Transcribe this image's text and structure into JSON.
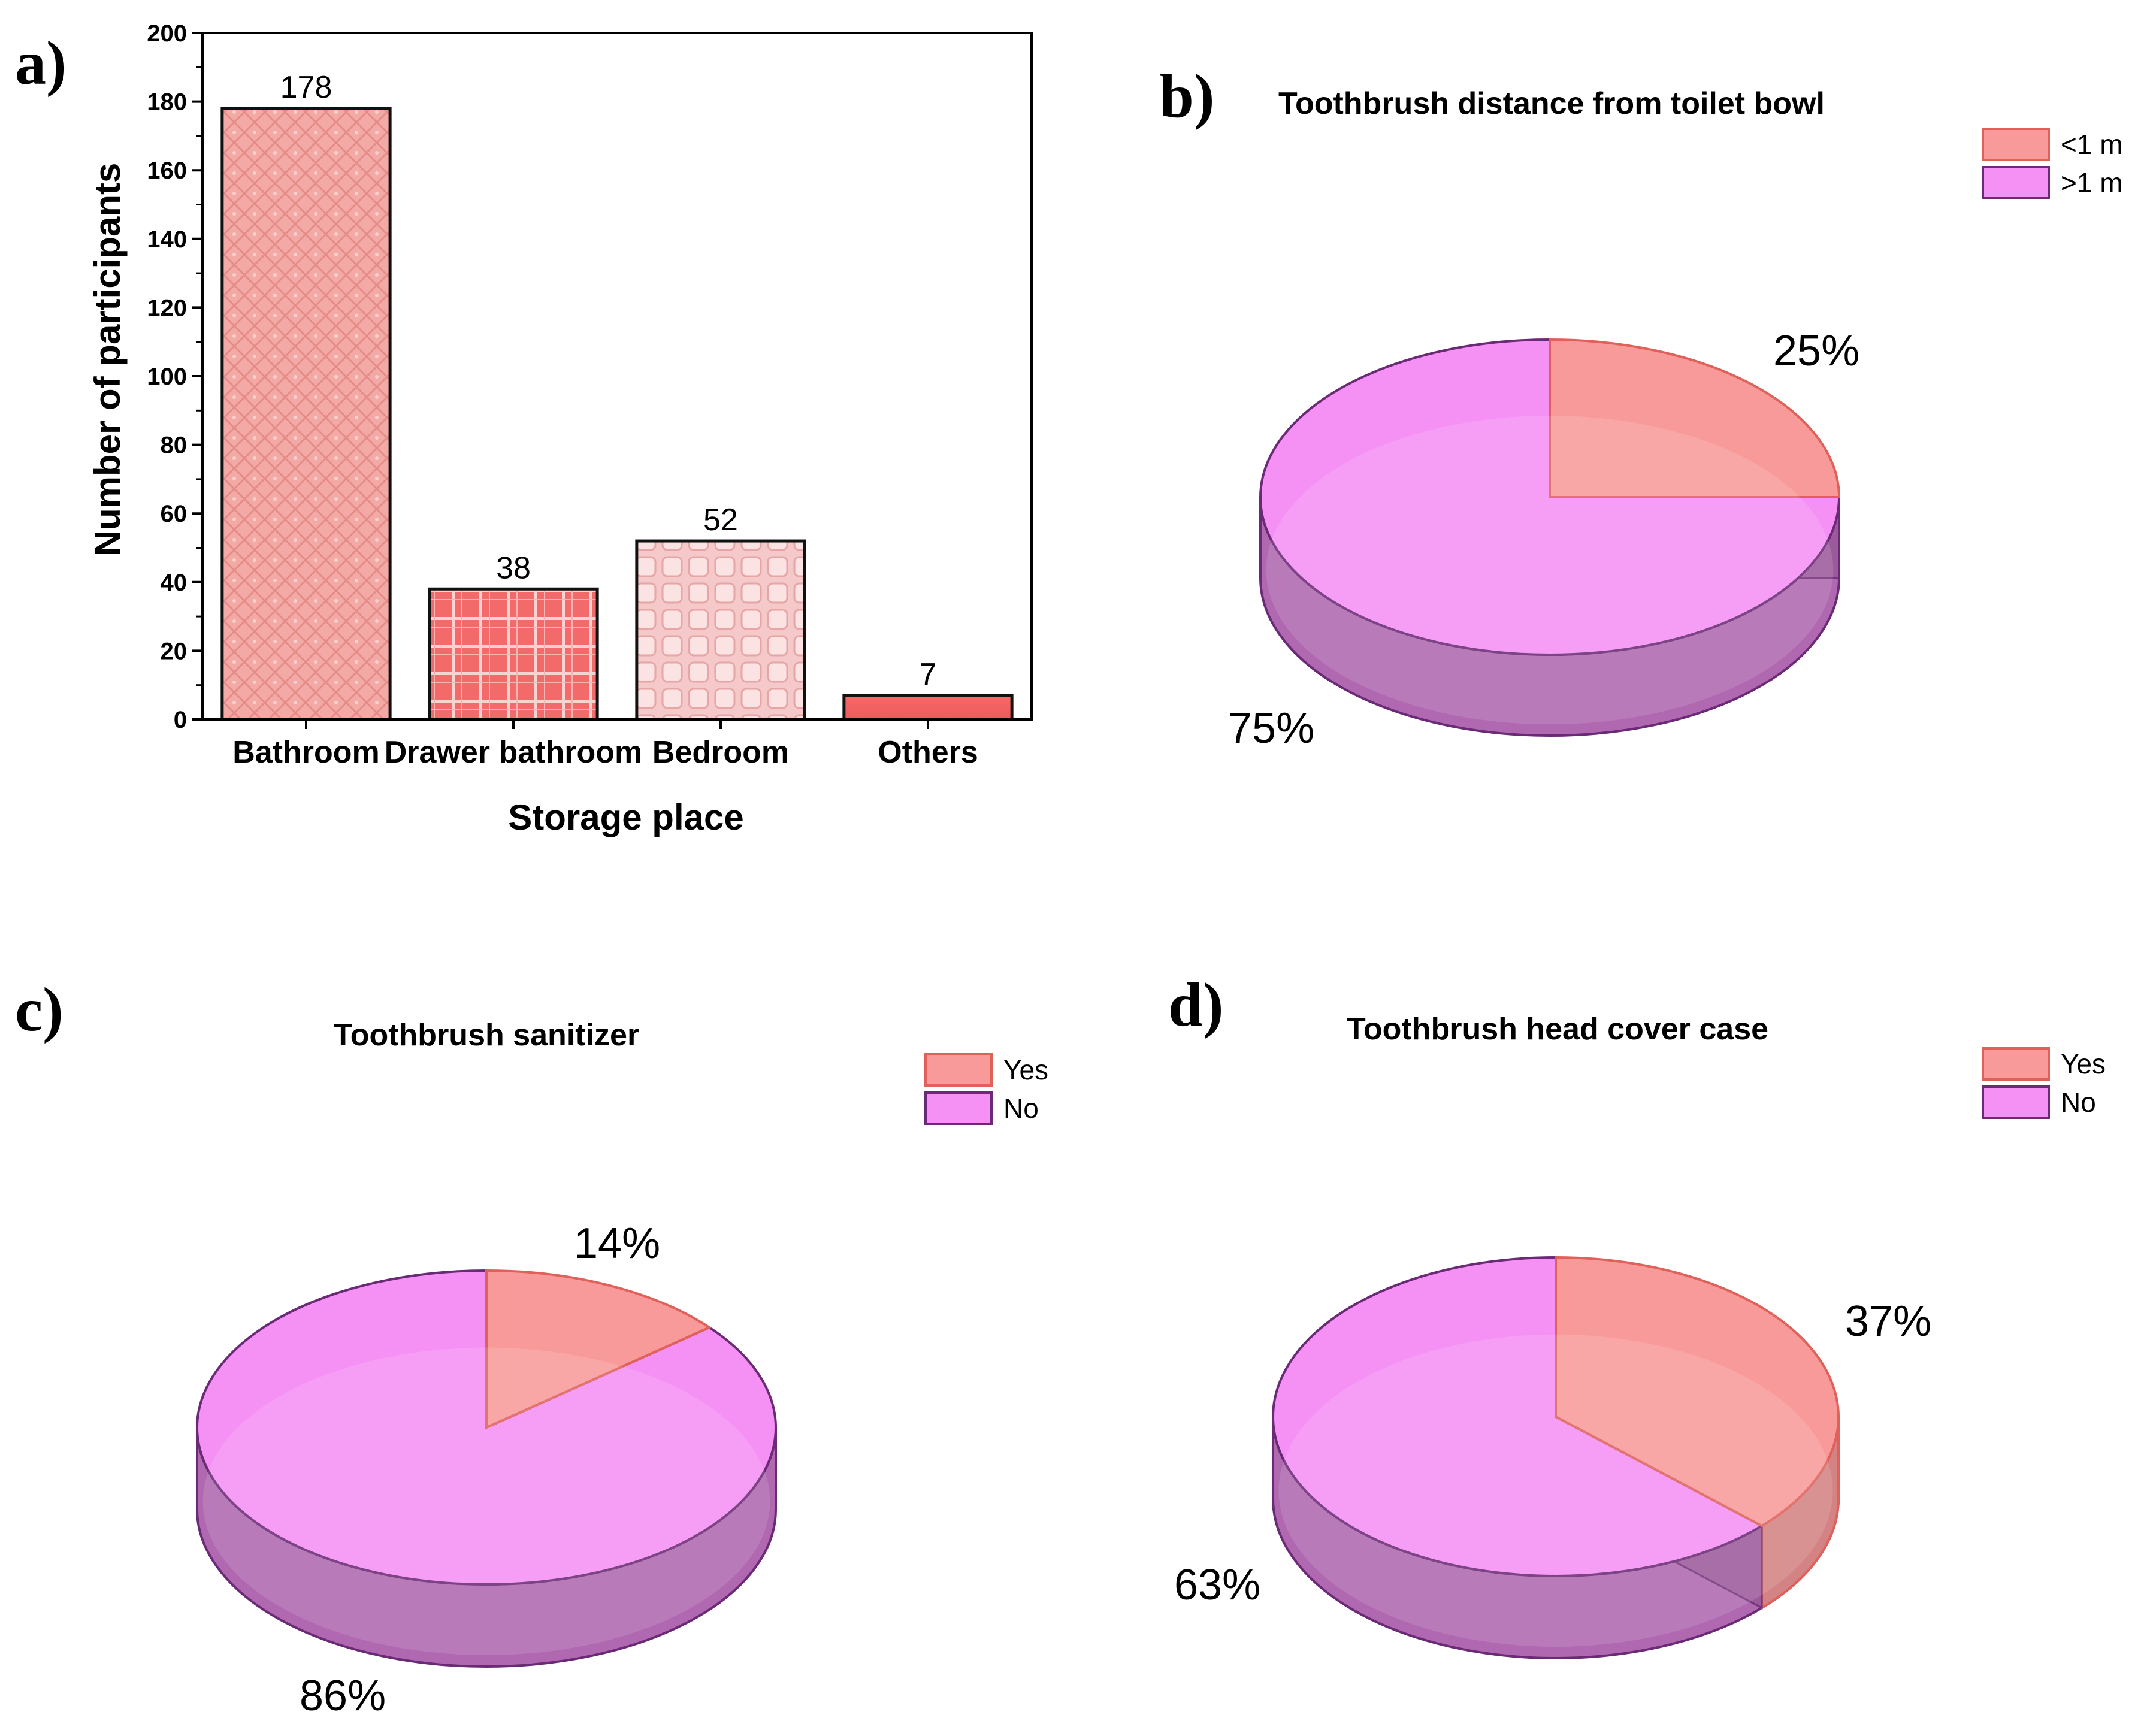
{
  "figure": {
    "panel_labels": [
      "a)",
      "b)",
      "c)",
      "d)"
    ]
  },
  "chart_data": [
    {
      "type": "bar",
      "panel": "a)",
      "title": "",
      "xlabel": "Storage place",
      "ylabel": "Number of participants",
      "categories": [
        "Bathroom",
        "Drawer bathroom",
        "Bedroom",
        "Others"
      ],
      "values": [
        178,
        38,
        52,
        7
      ],
      "data_labels": [
        "178",
        "38",
        "52",
        "7"
      ],
      "ylim": [
        0,
        200
      ],
      "yticks": [
        0,
        20,
        40,
        60,
        80,
        100,
        120,
        140,
        160,
        180,
        200
      ],
      "ytick_labels": [
        "0",
        "20",
        "40",
        "60",
        "80",
        "100",
        "120",
        "140",
        "160",
        "180",
        "200"
      ],
      "grid": false,
      "colors": [
        "#f0a5a0",
        "#f06e6e",
        "#f2c8c8",
        "#f06060"
      ]
    },
    {
      "type": "pie",
      "panel": "b)",
      "title": "Toothbrush distance from toilet bowl",
      "labels": [
        "<1 m",
        ">1 m"
      ],
      "values": [
        25,
        75
      ],
      "value_labels": [
        "25%",
        "75%"
      ],
      "legend_position": "top-right",
      "colors": [
        "#f89a9a",
        "#f590f5"
      ]
    },
    {
      "type": "pie",
      "panel": "c)",
      "title": "Toothbrush sanitizer",
      "labels": [
        "Yes",
        "No"
      ],
      "values": [
        14,
        86
      ],
      "value_labels": [
        "14%",
        "86%"
      ],
      "legend_position": "top-right",
      "colors": [
        "#f89a9a",
        "#f590f5"
      ]
    },
    {
      "type": "pie",
      "panel": "d)",
      "title": "Toothbrush head cover case",
      "labels": [
        "Yes",
        "No"
      ],
      "values": [
        37,
        63
      ],
      "value_labels": [
        "37%",
        "63%"
      ],
      "legend_position": "top-right",
      "colors": [
        "#f89a9a",
        "#f590f5"
      ]
    }
  ]
}
